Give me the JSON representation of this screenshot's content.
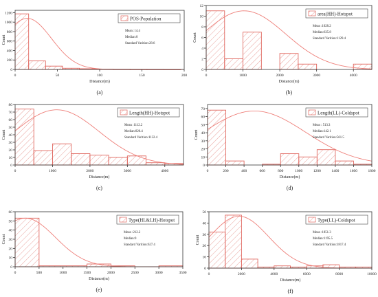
{
  "chart_data": [
    {
      "type": "bar",
      "panel_label": "(a)",
      "legend": "POS-Population",
      "stats": [
        "Mean :14.4",
        "Median:0",
        "Standard Varition:28.6"
      ],
      "xlabel": "Distance(m)",
      "ylabel": "Count",
      "xlim": [
        0,
        200
      ],
      "ylim": [
        0,
        1250
      ],
      "xticks": [
        0,
        50,
        100,
        150,
        200
      ],
      "yticks": [
        0,
        200,
        400,
        600,
        800,
        1000,
        1200
      ],
      "bins": [
        [
          0,
          16,
          1175
        ],
        [
          16,
          36,
          180
        ],
        [
          36,
          56,
          70
        ],
        [
          56,
          76,
          25
        ],
        [
          76,
          96,
          15
        ],
        [
          96,
          116,
          8
        ],
        [
          116,
          136,
          5
        ],
        [
          136,
          156,
          3
        ],
        [
          156,
          176,
          2
        ],
        [
          176,
          196,
          1
        ]
      ],
      "curve": {
        "mean": 14.4,
        "sd": 28.6,
        "peak": 1080
      },
      "legend_position": "top-right",
      "grid": false
    },
    {
      "type": "bar",
      "panel_label": "(b)",
      "legend": "area(HH)-Hotspot",
      "stats": [
        "Mean :1028.2",
        "Median:635.8",
        "Standard Varition:1129.4"
      ],
      "xlabel": "Distance(m)",
      "ylabel": "Count",
      "xlim": [
        0,
        4500
      ],
      "ylim": [
        0,
        12
      ],
      "xticks": [
        0,
        1000,
        2000,
        3000,
        4000
      ],
      "yticks": [
        0,
        2,
        4,
        6,
        8,
        10,
        12
      ],
      "bins": [
        [
          0,
          500,
          11
        ],
        [
          500,
          1000,
          2
        ],
        [
          1000,
          1500,
          7
        ],
        [
          2000,
          2500,
          3
        ],
        [
          2500,
          3000,
          1
        ],
        [
          4000,
          4500,
          1
        ]
      ],
      "curve": {
        "mean": 1028.2,
        "sd": 1129.4,
        "peak": 11
      },
      "legend_position": "top-right",
      "grid": false
    },
    {
      "type": "bar",
      "panel_label": "(c)",
      "legend": "Length(HH)-Hotspot",
      "stats": [
        "Mean :1112.2",
        "Median:820.4",
        "Standard Varition:1132.4"
      ],
      "xlabel": "Distance(m)",
      "ylabel": "Count",
      "xlim": [
        0,
        4500
      ],
      "ylim": [
        0,
        80
      ],
      "xticks": [
        0,
        1000,
        2000,
        3000,
        4000
      ],
      "yticks": [
        0,
        10,
        20,
        30,
        40,
        50,
        60,
        70,
        80
      ],
      "bins": [
        [
          0,
          500,
          74
        ],
        [
          500,
          1000,
          19
        ],
        [
          1000,
          1500,
          28
        ],
        [
          1500,
          2000,
          15
        ],
        [
          2000,
          2500,
          13
        ],
        [
          2500,
          3000,
          10
        ],
        [
          3000,
          3500,
          12
        ],
        [
          3500,
          4000,
          3
        ],
        [
          4000,
          4500,
          2
        ]
      ],
      "curve": {
        "mean": 1112.2,
        "sd": 1132.4,
        "peak": 73
      },
      "legend_position": "top-right",
      "grid": false
    },
    {
      "type": "bar",
      "panel_label": "(d)",
      "legend": "Length(LL)-Coldspot",
      "stats": [
        "Mean : 513.3",
        "Median:142.1",
        "Standard Varition:561.5"
      ],
      "xlabel": "Distance(m)",
      "ylabel": "Count",
      "xlim": [
        0,
        1800
      ],
      "ylim": [
        0,
        75
      ],
      "xticks": [
        0,
        200,
        400,
        600,
        800,
        1000,
        1200,
        1400,
        1600,
        1800
      ],
      "yticks": [
        0,
        10,
        20,
        30,
        40,
        50,
        60,
        70
      ],
      "bins": [
        [
          0,
          200,
          68
        ],
        [
          200,
          400,
          5
        ],
        [
          600,
          800,
          1
        ],
        [
          800,
          1000,
          14
        ],
        [
          1000,
          1200,
          10
        ],
        [
          1200,
          1400,
          19
        ],
        [
          1400,
          1600,
          5
        ],
        [
          1600,
          1800,
          1
        ]
      ],
      "curve": {
        "mean": 513.3,
        "sd": 561.5,
        "peak": 67
      },
      "legend_position": "top-right",
      "grid": false
    },
    {
      "type": "bar",
      "panel_label": "(e)",
      "legend": "Type(HL&LH)-Hotspot",
      "stats": [
        "Mean :212.2",
        "Median:0",
        "Standard Varition:627.4"
      ],
      "xlabel": "Distance(m)",
      "ylabel": "Count",
      "xlim": [
        0,
        3500
      ],
      "ylim": [
        0,
        60
      ],
      "xticks": [
        0,
        500,
        1000,
        1500,
        2000,
        2500,
        3000,
        3500
      ],
      "yticks": [
        0,
        10,
        20,
        30,
        40,
        50,
        60
      ],
      "bins": [
        [
          0,
          500,
          53
        ],
        [
          500,
          1500,
          1
        ],
        [
          1500,
          2000,
          3
        ],
        [
          2000,
          2500,
          1
        ],
        [
          3000,
          3500,
          1
        ]
      ],
      "curve": {
        "mean": 212.2,
        "sd": 627.4,
        "peak": 53
      },
      "legend_position": "top-right",
      "grid": false
    },
    {
      "type": "bar",
      "panel_label": "(f)",
      "legend": "Type(LL)-Coldspot",
      "stats": [
        "Mean :1851.3",
        "Median:1195.5",
        "Standard Varition:1817.4"
      ],
      "xlabel": "Distance(m)",
      "ylabel": "Count",
      "xlim": [
        0,
        10000
      ],
      "ylim": [
        0,
        50
      ],
      "xticks": [
        0,
        2000,
        4000,
        6000,
        8000,
        10000
      ],
      "yticks": [
        0,
        10,
        20,
        30,
        40,
        50
      ],
      "bins": [
        [
          0,
          1000,
          32
        ],
        [
          1000,
          2000,
          47
        ],
        [
          2000,
          3000,
          8
        ],
        [
          3000,
          4000,
          1
        ],
        [
          4000,
          5000,
          2
        ],
        [
          5000,
          6000,
          1
        ],
        [
          6000,
          7000,
          2
        ],
        [
          7000,
          8000,
          3
        ],
        [
          8000,
          9000,
          1
        ],
        [
          9000,
          10000,
          1
        ]
      ],
      "curve": {
        "mean": 1851.3,
        "sd": 1817.4,
        "peak": 46
      },
      "legend_position": "top-right",
      "grid": false
    }
  ],
  "colors": {
    "bar_stroke": "#e0665e",
    "hatch": "#e8a09a",
    "curve": "#ee7f79",
    "axis": "#333333"
  }
}
